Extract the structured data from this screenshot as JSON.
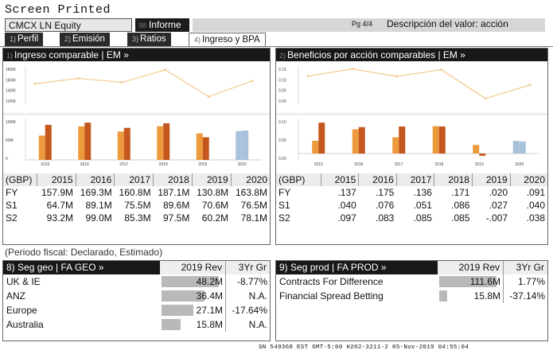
{
  "header": {
    "screen_title": "Screen Printed",
    "ticker": "CMCX LN Equity",
    "report_num": "98",
    "report_label": "Informe",
    "page_info": "Pg 4/4",
    "description": "Descripción del valor: acción"
  },
  "tabs": [
    {
      "num": "1)",
      "label": "Perfil"
    },
    {
      "num": "2)",
      "label": "Emisión"
    },
    {
      "num": "3)",
      "label": "Ratios"
    },
    {
      "num": "4)",
      "label": "Ingreso y BPA"
    }
  ],
  "left_panel": {
    "num": "1)",
    "title": "Ingreso comparable",
    "em": "EM »",
    "table": {
      "unit": "(GBP)",
      "years": [
        "2015",
        "2016",
        "2017",
        "2018",
        "2019",
        "2020"
      ],
      "rows": [
        {
          "label": "FY",
          "values": [
            "157.9M",
            "169.3M",
            "160.8M",
            "187.1M",
            "130.8M",
            "163.8M"
          ]
        },
        {
          "label": "S1",
          "values": [
            "64.7M",
            "89.1M",
            "75.5M",
            "89.6M",
            "70.6M",
            "76.5M"
          ]
        },
        {
          "label": "S2",
          "values": [
            "93.2M",
            "99.0M",
            "85.3M",
            "97.5M",
            "60.2M",
            "78.1M"
          ]
        }
      ]
    }
  },
  "right_panel": {
    "num": "2)",
    "title": "Beneficios por acción comparables",
    "em": "EM »",
    "table": {
      "unit": "(GBP)",
      "years": [
        "2015",
        "2016",
        "2017",
        "2018",
        "2019",
        "2020"
      ],
      "rows": [
        {
          "label": "FY",
          "values": [
            ".137",
            ".175",
            ".136",
            ".171",
            ".020",
            ".091"
          ]
        },
        {
          "label": "S1",
          "values": [
            ".040",
            ".076",
            ".051",
            ".086",
            ".027",
            ".040"
          ]
        },
        {
          "label": "S2",
          "values": [
            ".097",
            ".083",
            ".085",
            ".085",
            "-.007",
            ".038"
          ]
        }
      ]
    }
  },
  "chart_data": [
    {
      "type": "line",
      "x": [
        "2015",
        "2016",
        "2017",
        "2018",
        "2019",
        "2020"
      ],
      "series": [
        {
          "values": [
            157.9,
            169.3,
            160.8,
            187.1,
            130.8,
            163.8
          ]
        }
      ],
      "y_ticks": [
        "180M",
        "160M",
        "140M",
        "120M"
      ],
      "ylim": [
        115,
        195
      ]
    },
    {
      "type": "bar",
      "categories": [
        "2015",
        "2016",
        "2017",
        "2018",
        "2019",
        "2020"
      ],
      "series": [
        {
          "values": [
            64.7,
            89.1,
            75.5,
            89.6,
            70.6,
            76.5
          ]
        },
        {
          "values": [
            93.2,
            99.0,
            85.3,
            97.5,
            60.2,
            78.1
          ]
        }
      ],
      "y_ticks": [
        "100M",
        "50M",
        "0"
      ],
      "ylim": [
        0,
        110
      ],
      "estimated_categories": [
        "2020"
      ]
    },
    {
      "type": "line",
      "x": [
        "2015",
        "2016",
        "2017",
        "2018",
        "2019",
        "2020"
      ],
      "series": [
        {
          "values": [
            0.137,
            0.175,
            0.136,
            0.171,
            0.02,
            0.091
          ]
        }
      ],
      "y_ticks": [
        "0.15",
        "0.10",
        "0.05",
        "0.00"
      ],
      "ylim": [
        -0.01,
        0.19
      ]
    },
    {
      "type": "bar",
      "categories": [
        "2015",
        "2016",
        "2017",
        "2018",
        "2019",
        "2020"
      ],
      "series": [
        {
          "values": [
            0.04,
            0.076,
            0.051,
            0.086,
            0.027,
            0.04
          ]
        },
        {
          "values": [
            0.097,
            0.083,
            0.085,
            0.085,
            -0.007,
            0.038
          ]
        }
      ],
      "y_ticks": [
        "0.10",
        "0.05",
        "0.00"
      ],
      "ylim": [
        -0.02,
        0.11
      ],
      "estimated_categories": [
        "2020"
      ]
    }
  ],
  "chart_colors": {
    "line": "#f3c989",
    "bar_s1": "#ec9a3c",
    "bar_s2": "#c4571d",
    "bar_est": "#a9c2dc"
  },
  "fiscal_note": "(Periodo fiscal: Declarado, Estimado)",
  "seg_geo": {
    "num": "8)",
    "title": "Seg geo | FA GEO »",
    "col_rev": "2019 Rev",
    "col_gr": "3Yr Gr",
    "rows": [
      {
        "name": "UK & IE",
        "rev": "48.2M",
        "rev_num": 48.2,
        "gr": "-8.77%"
      },
      {
        "name": "ANZ",
        "rev": "36.4M",
        "rev_num": 36.4,
        "gr": "N.A."
      },
      {
        "name": "Europe",
        "rev": "27.1M",
        "rev_num": 27.1,
        "gr": "-17.64%"
      },
      {
        "name": "Australia",
        "rev": "15.8M",
        "rev_num": 15.8,
        "gr": "N.A."
      }
    ]
  },
  "seg_prod": {
    "num": "9)",
    "title": "Seg prod | FA PROD »",
    "col_rev": "2019 Rev",
    "col_gr": "3Yr Gr",
    "rows": [
      {
        "name": "Contracts For Difference",
        "rev": "111.6M",
        "rev_num": 111.6,
        "gr": "1.77%"
      },
      {
        "name": "Financial Spread Betting",
        "rev": "15.8M",
        "rev_num": 15.8,
        "gr": "-37.14%"
      }
    ]
  },
  "footer": "SN 549368 EST  GMT-5:00 H202-3211-2 05-Nov-2019 04:55:04"
}
